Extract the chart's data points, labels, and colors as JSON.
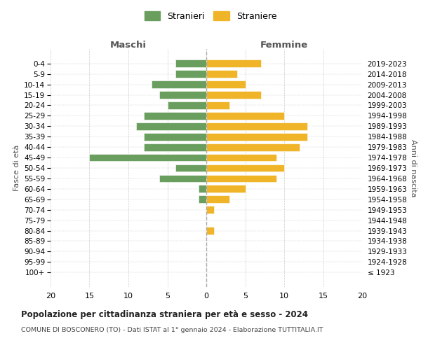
{
  "age_groups": [
    "100+",
    "95-99",
    "90-94",
    "85-89",
    "80-84",
    "75-79",
    "70-74",
    "65-69",
    "60-64",
    "55-59",
    "50-54",
    "45-49",
    "40-44",
    "35-39",
    "30-34",
    "25-29",
    "20-24",
    "15-19",
    "10-14",
    "5-9",
    "0-4"
  ],
  "birth_years": [
    "≤ 1923",
    "1924-1928",
    "1929-1933",
    "1934-1938",
    "1939-1943",
    "1944-1948",
    "1949-1953",
    "1954-1958",
    "1959-1963",
    "1964-1968",
    "1969-1973",
    "1974-1978",
    "1979-1983",
    "1984-1988",
    "1989-1993",
    "1994-1998",
    "1999-2003",
    "2004-2008",
    "2009-2013",
    "2014-2018",
    "2019-2023"
  ],
  "males": [
    0,
    0,
    0,
    0,
    0,
    0,
    0,
    1,
    1,
    6,
    4,
    15,
    8,
    8,
    9,
    8,
    5,
    6,
    7,
    4,
    4
  ],
  "females": [
    0,
    0,
    0,
    0,
    1,
    0,
    1,
    3,
    5,
    9,
    10,
    9,
    12,
    13,
    13,
    10,
    3,
    7,
    5,
    4,
    7
  ],
  "male_color": "#6a9e5f",
  "female_color": "#f0b429",
  "xlim": 20,
  "title": "Popolazione per cittadinanza straniera per età e sesso - 2024",
  "subtitle": "COMUNE DI BOSCONERO (TO) - Dati ISTAT al 1° gennaio 2024 - Elaborazione TUTTITALIA.IT",
  "legend_male": "Stranieri",
  "legend_female": "Straniere",
  "xlabel_left": "Maschi",
  "xlabel_right": "Femmine",
  "ylabel_left": "Fasce di età",
  "ylabel_right": "Anni di nascita",
  "background_color": "#ffffff",
  "grid_color": "#cccccc"
}
